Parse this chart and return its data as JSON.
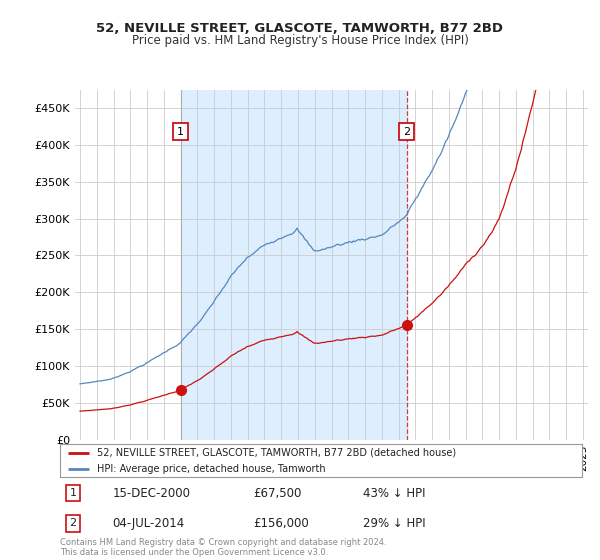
{
  "title": "52, NEVILLE STREET, GLASCOTE, TAMWORTH, B77 2BD",
  "subtitle": "Price paid vs. HM Land Registry's House Price Index (HPI)",
  "background_color": "#ffffff",
  "plot_bg_color": "#ffffff",
  "grid_color": "#cccccc",
  "hpi_color": "#5588bb",
  "price_color": "#cc1111",
  "shade_color": "#ddeeff",
  "annotation1_date": "15-DEC-2000",
  "annotation1_price": "£67,500",
  "annotation1_hpi": "43% ↓ HPI",
  "annotation2_date": "04-JUL-2014",
  "annotation2_price": "£156,000",
  "annotation2_hpi": "29% ↓ HPI",
  "legend_label1": "52, NEVILLE STREET, GLASCOTE, TAMWORTH, B77 2BD (detached house)",
  "legend_label2": "HPI: Average price, detached house, Tamworth",
  "footer": "Contains HM Land Registry data © Crown copyright and database right 2024.\nThis data is licensed under the Open Government Licence v3.0.",
  "ylim": [
    0,
    475000
  ],
  "yticks": [
    0,
    50000,
    100000,
    150000,
    200000,
    250000,
    300000,
    350000,
    400000,
    450000
  ],
  "ytick_labels": [
    "£0",
    "£50K",
    "£100K",
    "£150K",
    "£200K",
    "£250K",
    "£300K",
    "£350K",
    "£400K",
    "£450K"
  ],
  "purchase1_x": 2001.0,
  "purchase1_y": 67500,
  "purchase2_x": 2014.5,
  "purchase2_y": 156000,
  "vline1_x": 2001.0,
  "vline2_x": 2014.5,
  "xlim_left": 1994.7,
  "xlim_right": 2025.3
}
